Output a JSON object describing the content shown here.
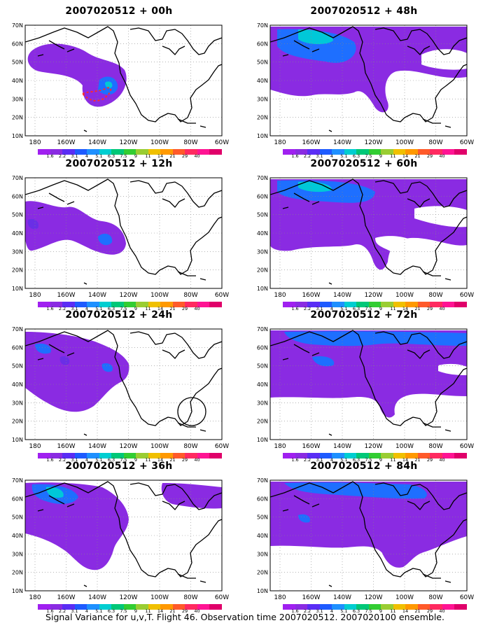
{
  "panels": [
    {
      "title": "2007020512 + 00h"
    },
    {
      "title": "2007020512 + 48h"
    },
    {
      "title": "2007020512 + 12h"
    },
    {
      "title": "2007020512 + 60h"
    },
    {
      "title": "2007020512 + 24h"
    },
    {
      "title": "2007020512 + 72h"
    },
    {
      "title": "2007020512 + 36h"
    },
    {
      "title": "2007020512 + 84h"
    }
  ],
  "map_axes": {
    "lat_ticks": [
      "70N",
      "60N",
      "50N",
      "40N",
      "30N",
      "20N",
      "10N"
    ],
    "lon_ticks": [
      "180",
      "160W",
      "140W",
      "120W",
      "100W",
      "80W",
      "60W"
    ]
  },
  "colorbar": {
    "labels": [
      "1.6",
      "2.2",
      "3.1",
      "4",
      "5.1",
      "6.3",
      "7.5",
      "9",
      "11",
      "14",
      "21",
      "29",
      "40"
    ],
    "colors": [
      "#a020f0",
      "#8a2be2",
      "#5a2df5",
      "#1e5bff",
      "#1e90ff",
      "#00ced1",
      "#00c878",
      "#32cd32",
      "#9acd32",
      "#f0c000",
      "#ff9900",
      "#ff5a2a",
      "#ff2a60",
      "#ff1493",
      "#e0006a"
    ]
  },
  "footer": "Signal Variance for u,v,T. Flight 46. Observation time 2007020512. 2007020100 ensemble.",
  "fill_colors": {
    "purple": "#8a2be2",
    "violet": "#6a2ee6",
    "blue": "#1e6fff",
    "cyan": "#00c8d8"
  }
}
